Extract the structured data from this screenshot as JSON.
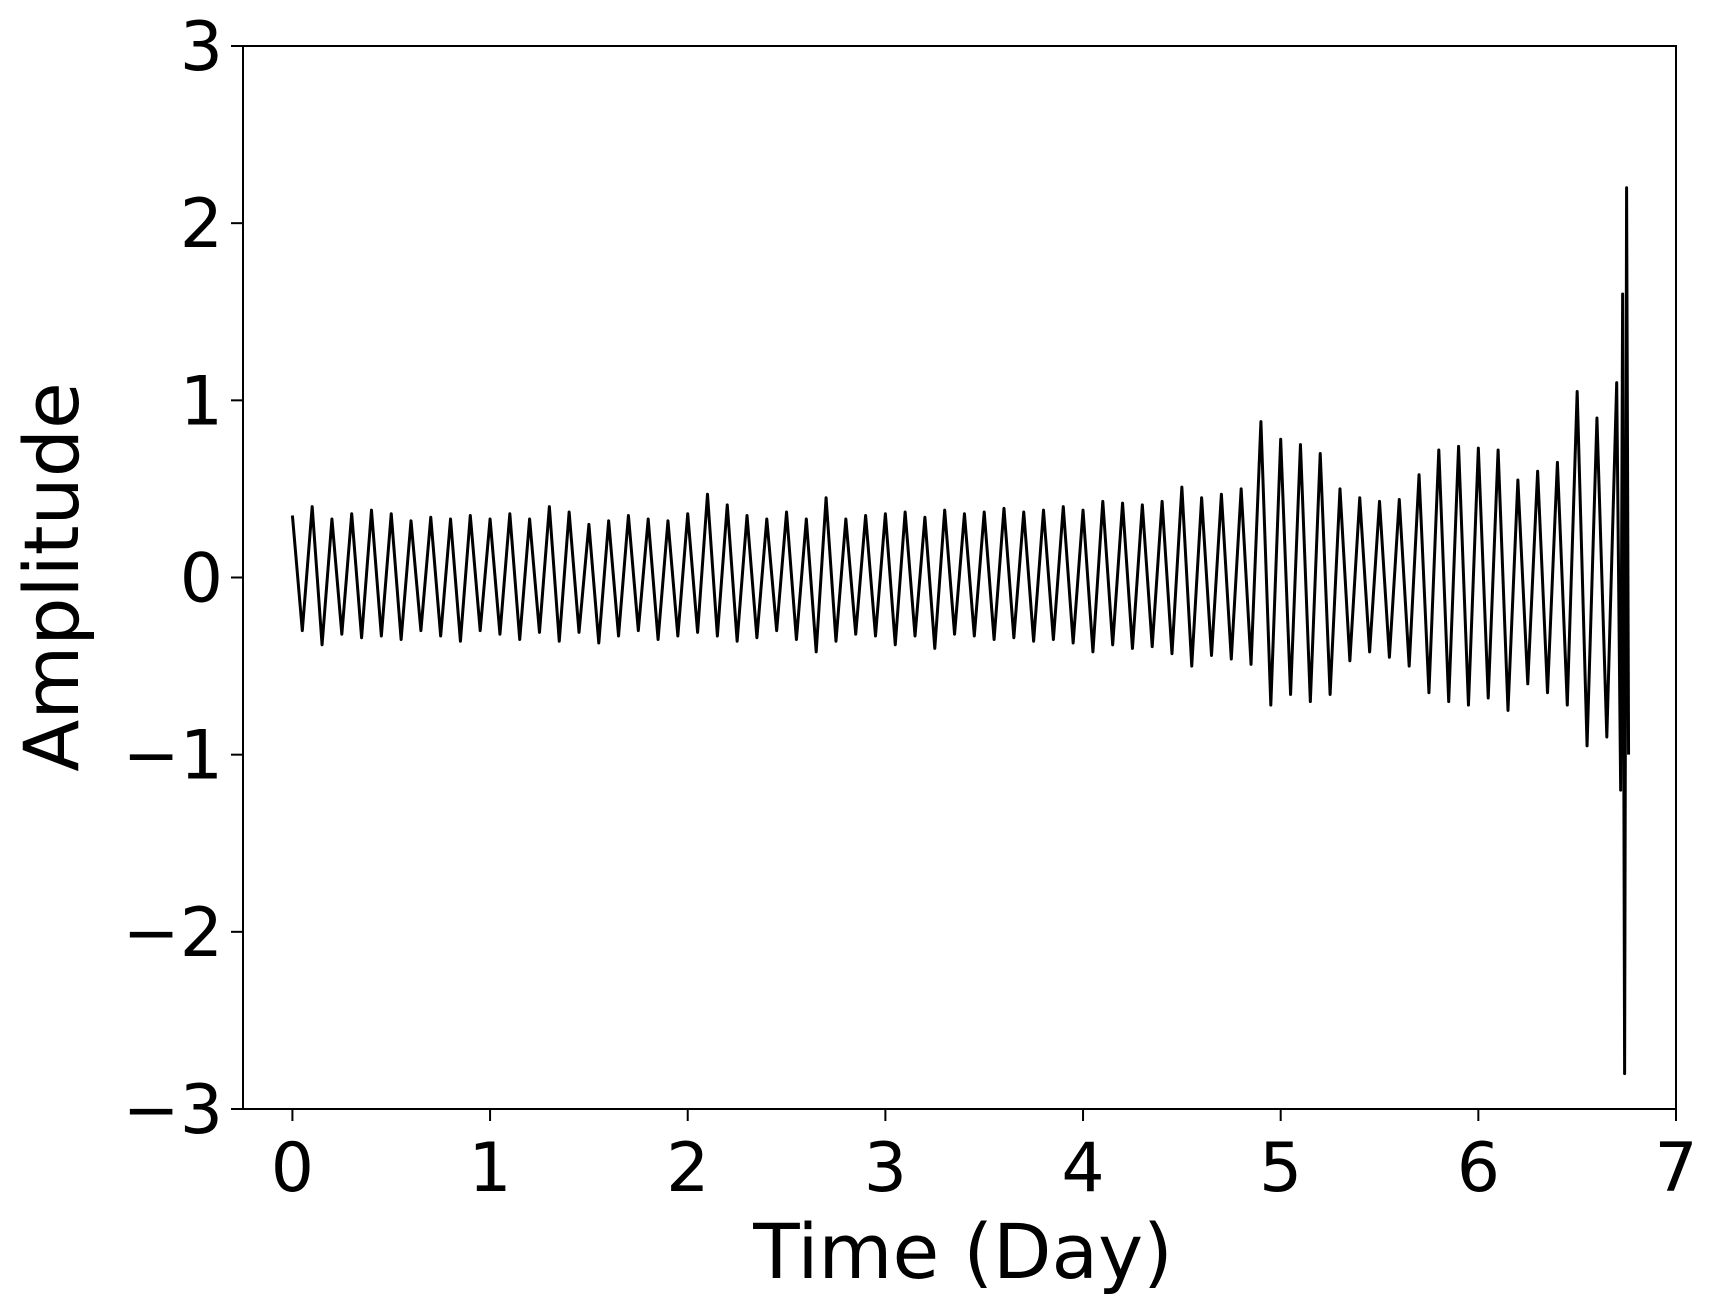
{
  "chart_data": {
    "type": "line",
    "x_label": "Time (Day)",
    "y_label": "Amplitude",
    "xlim": [
      -0.25,
      7
    ],
    "ylim": [
      -3,
      3
    ],
    "xticks": [
      0,
      1,
      2,
      3,
      4,
      5,
      6,
      7
    ],
    "yticks": [
      {
        "value": -3,
        "label": "−3"
      },
      {
        "value": -2,
        "label": "−2"
      },
      {
        "value": -1,
        "label": "−1"
      },
      0,
      1,
      2,
      3
    ],
    "series": [
      {
        "color": "#000000",
        "x": [
          0,
          0.05,
          0.1,
          0.15,
          0.2,
          0.25,
          0.3,
          0.35,
          0.4,
          0.45,
          0.5,
          0.55,
          0.6,
          0.65,
          0.7,
          0.75,
          0.8,
          0.85,
          0.9,
          0.95,
          1.0,
          1.05,
          1.1,
          1.15,
          1.2,
          1.25,
          1.3,
          1.35,
          1.4,
          1.45,
          1.5,
          1.55,
          1.6,
          1.65,
          1.7,
          1.75,
          1.8,
          1.85,
          1.9,
          1.95,
          2.0,
          2.05,
          2.1,
          2.15,
          2.2,
          2.25,
          2.3,
          2.35,
          2.4,
          2.45,
          2.5,
          2.55,
          2.6,
          2.65,
          2.7,
          2.75,
          2.8,
          2.85,
          2.9,
          2.95,
          3.0,
          3.05,
          3.1,
          3.15,
          3.2,
          3.25,
          3.3,
          3.35,
          3.4,
          3.45,
          3.5,
          3.55,
          3.6,
          3.65,
          3.7,
          3.75,
          3.8,
          3.85,
          3.9,
          3.95,
          4.0,
          4.05,
          4.1,
          4.15,
          4.2,
          4.25,
          4.3,
          4.35,
          4.4,
          4.45,
          4.5,
          4.55,
          4.6,
          4.65,
          4.7,
          4.75,
          4.8,
          4.85,
          4.9,
          4.95,
          5.0,
          5.05,
          5.1,
          5.15,
          5.2,
          5.25,
          5.3,
          5.35,
          5.4,
          5.45,
          5.5,
          5.55,
          5.6,
          5.65,
          5.7,
          5.75,
          5.8,
          5.85,
          5.9,
          5.95,
          6.0,
          6.05,
          6.1,
          6.15,
          6.2,
          6.25,
          6.3,
          6.35,
          6.4,
          6.45,
          6.5,
          6.55,
          6.6,
          6.65,
          6.7,
          6.72,
          6.73,
          6.74,
          6.75,
          6.76
        ],
        "values": [
          0.35,
          -0.3,
          0.4,
          -0.38,
          0.33,
          -0.32,
          0.36,
          -0.34,
          0.38,
          -0.33,
          0.36,
          -0.35,
          0.32,
          -0.3,
          0.34,
          -0.33,
          0.33,
          -0.36,
          0.35,
          -0.3,
          0.33,
          -0.32,
          0.36,
          -0.35,
          0.33,
          -0.31,
          0.4,
          -0.36,
          0.37,
          -0.31,
          0.3,
          -0.37,
          0.32,
          -0.33,
          0.35,
          -0.3,
          0.33,
          -0.35,
          0.32,
          -0.33,
          0.36,
          -0.31,
          0.47,
          -0.33,
          0.41,
          -0.36,
          0.35,
          -0.34,
          0.33,
          -0.3,
          0.37,
          -0.35,
          0.33,
          -0.42,
          0.45,
          -0.36,
          0.33,
          -0.32,
          0.35,
          -0.33,
          0.36,
          -0.38,
          0.37,
          -0.33,
          0.34,
          -0.4,
          0.38,
          -0.32,
          0.36,
          -0.33,
          0.37,
          -0.35,
          0.39,
          -0.34,
          0.37,
          -0.36,
          0.38,
          -0.35,
          0.4,
          -0.37,
          0.38,
          -0.42,
          0.43,
          -0.38,
          0.42,
          -0.4,
          0.41,
          -0.39,
          0.43,
          -0.43,
          0.51,
          -0.5,
          0.45,
          -0.44,
          0.47,
          -0.46,
          0.5,
          -0.49,
          0.88,
          -0.72,
          0.78,
          -0.66,
          0.75,
          -0.7,
          0.7,
          -0.66,
          0.5,
          -0.47,
          0.45,
          -0.42,
          0.43,
          -0.45,
          0.44,
          -0.5,
          0.58,
          -0.65,
          0.72,
          -0.7,
          0.74,
          -0.72,
          0.73,
          -0.68,
          0.72,
          -0.75,
          0.55,
          -0.6,
          0.6,
          -0.65,
          0.65,
          -0.72,
          1.05,
          -0.95,
          0.9,
          -0.9,
          1.1,
          -1.2,
          1.6,
          -2.8,
          2.2,
          -1.0
        ]
      }
    ]
  }
}
